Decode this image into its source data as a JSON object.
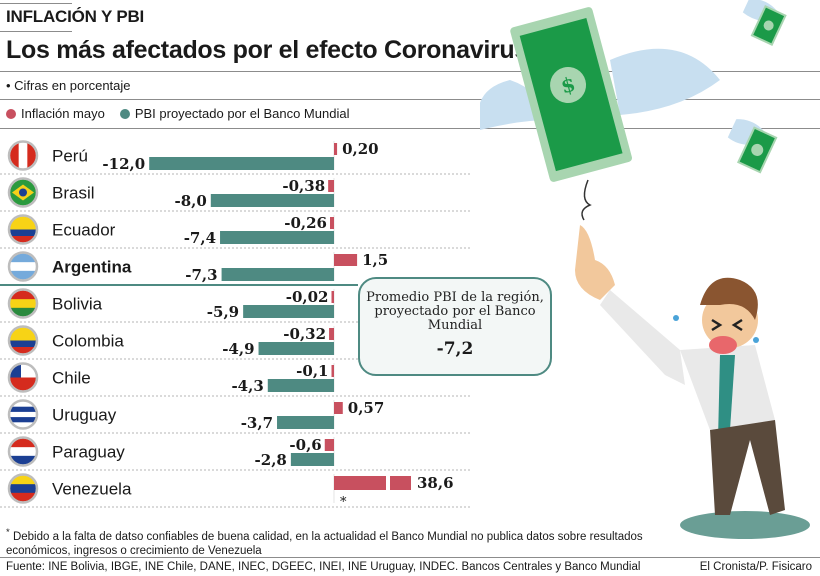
{
  "header": {
    "kicker": "INFLACIÓN Y PBI",
    "title": "Los más afectados por el efecto Coronavirus",
    "subtitle": "• Cifras en porcentaje"
  },
  "legend": [
    {
      "label": "Inflación mayo",
      "color": "#c8505f"
    },
    {
      "label": "PBI proyectado por el Banco Mundial",
      "color": "#4e8a82"
    }
  ],
  "highlight": {
    "label": "Promedio PBI de la región, proyectado por el Banco Mundial",
    "value": "-7,2"
  },
  "footnote": {
    "marker": "*",
    "text": "Debido a la falta de datso confiables de buena calidad, en la actualidad el Banco Mundial no publica datos sobre resultados económicos, ingresos o crecimiento de Venezuela"
  },
  "source": "Fuente: INE Bolivia, IBGE, INE Chile, DANE, INEC, DGEEC, INEI, INE Uruguay, INDEC. Bancos Centrales y Banco Mundial",
  "credit": "El Cronista/P. Fisicaro",
  "colors": {
    "inflation": "#c8505f",
    "gdp": "#4e8a82",
    "rule": "#8c8c8c"
  },
  "chart_data": {
    "type": "bar",
    "orientation": "horizontal",
    "title": "Los más afectados por el efecto Coronavirus",
    "unit": "%",
    "categories": [
      "Perú",
      "Brasil",
      "Ecuador",
      "Argentina",
      "Bolivia",
      "Colombia",
      "Chile",
      "Uruguay",
      "Paraguay",
      "Venezuela"
    ],
    "highlight_category": "Argentina",
    "series": [
      {
        "name": "Inflación mayo",
        "color": "#c8505f",
        "values": [
          0.2,
          -0.38,
          -0.26,
          1.5,
          -0.02,
          -0.32,
          -0.1,
          0.57,
          -0.6,
          38.6
        ],
        "labels": [
          "0,20",
          "-0,38",
          "-0,26",
          "1,5",
          "-0,02",
          "-0,32",
          "-0,1",
          "0,57",
          "-0,6",
          "38,6"
        ],
        "broken_axis": [
          "Venezuela"
        ]
      },
      {
        "name": "PBI proyectado por el Banco Mundial",
        "color": "#4e8a82",
        "values": [
          -12.0,
          -8.0,
          -7.4,
          -7.3,
          -5.9,
          -4.9,
          -4.3,
          -3.7,
          -2.8,
          null
        ],
        "labels": [
          "-12,0",
          "-8,0",
          "-7,4",
          "-7,3",
          "-5,9",
          "-4,9",
          "-4,3",
          "-3,7",
          "-2,8",
          "*"
        ]
      }
    ],
    "flags": [
      {
        "country": "Perú",
        "stripes": [
          "#d52b1e",
          "#ffffff",
          "#d52b1e"
        ],
        "dir": "v"
      },
      {
        "country": "Brasil",
        "stripes": [
          "#2a9a3e"
        ],
        "dir": "h",
        "emblem": "#f5d01a"
      },
      {
        "country": "Ecuador",
        "stripes": [
          "#f7d316",
          "#f7d316",
          "#1b3f93",
          "#d52b1e"
        ],
        "dir": "h"
      },
      {
        "country": "Argentina",
        "stripes": [
          "#75aadb",
          "#ffffff",
          "#75aadb"
        ],
        "dir": "h"
      },
      {
        "country": "Bolivia",
        "stripes": [
          "#d52b1e",
          "#f7d316",
          "#2a8a3e"
        ],
        "dir": "h"
      },
      {
        "country": "Colombia",
        "stripes": [
          "#f7d316",
          "#f7d316",
          "#1b3f93",
          "#d52b1e"
        ],
        "dir": "h"
      },
      {
        "country": "Chile",
        "stripes": [
          "#ffffff",
          "#d52b1e"
        ],
        "dir": "h",
        "canton": "#1b3f93"
      },
      {
        "country": "Uruguay",
        "stripes": [
          "#ffffff",
          "#1b3f93",
          "#ffffff",
          "#1b3f93",
          "#ffffff"
        ],
        "dir": "h"
      },
      {
        "country": "Paraguay",
        "stripes": [
          "#d52b1e",
          "#ffffff",
          "#1b3f93"
        ],
        "dir": "h"
      },
      {
        "country": "Venezuela",
        "stripes": [
          "#f7d316",
          "#1b3f93",
          "#d52b1e"
        ],
        "dir": "h"
      }
    ],
    "xlabel": "",
    "ylabel": ""
  }
}
